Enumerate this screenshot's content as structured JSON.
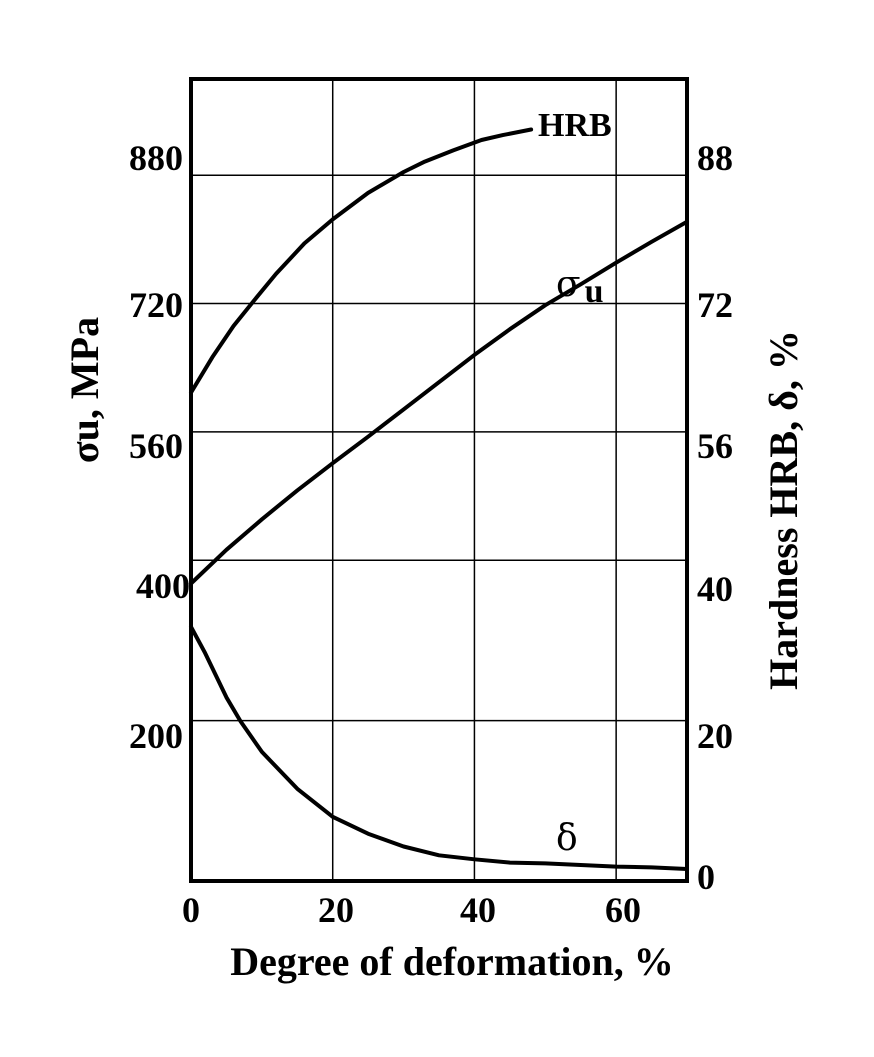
{
  "chart_data": {
    "type": "line",
    "xlabel": "Degree of deformation, %",
    "ylabel_left": "σu, MPa",
    "ylabel_right": "Hardness HRB, δ, %",
    "xlim": [
      0,
      70
    ],
    "ylim_left": [
      0,
      1000
    ],
    "ylim_right": [
      0,
      100
    ],
    "grid": true,
    "x_ticks": [
      "0",
      "20",
      "40",
      "60"
    ],
    "y_left_ticks": [
      "200",
      "400",
      "560",
      "720",
      "880"
    ],
    "y_right_ticks": [
      "0",
      "20",
      "40",
      "56",
      "72",
      "88"
    ],
    "series": [
      {
        "name": "HRB",
        "axis": "right",
        "label": "HRB",
        "x": [
          0,
          3,
          6,
          9,
          12,
          16,
          20,
          25,
          30,
          33,
          37,
          41,
          44,
          48
        ],
        "y": [
          60.9,
          65.3,
          69.2,
          72.5,
          75.7,
          79.5,
          82.5,
          85.8,
          88.4,
          89.7,
          91.1,
          92.4,
          93,
          93.7
        ]
      },
      {
        "name": "σu",
        "axis": "left",
        "label_main": "σ",
        "label_sub": "u",
        "x": [
          0,
          5,
          10,
          15,
          20,
          25,
          30,
          35,
          40,
          45,
          50,
          55,
          60,
          65,
          70
        ],
        "y": [
          371,
          413,
          451,
          487,
          521,
          554,
          588,
          622,
          656,
          688,
          718,
          744,
          771,
          797,
          822
        ]
      },
      {
        "name": "δ",
        "axis": "right",
        "label": "δ",
        "x": [
          0,
          2,
          5,
          7,
          10,
          15,
          20,
          25,
          30,
          35,
          40,
          45,
          50,
          55,
          60,
          65,
          70
        ],
        "y": [
          31.7,
          28.4,
          22.9,
          19.9,
          16.1,
          11.5,
          8,
          5.9,
          4.3,
          3.2,
          2.7,
          2.3,
          2.2,
          2,
          1.8,
          1.7,
          1.5
        ]
      }
    ]
  }
}
